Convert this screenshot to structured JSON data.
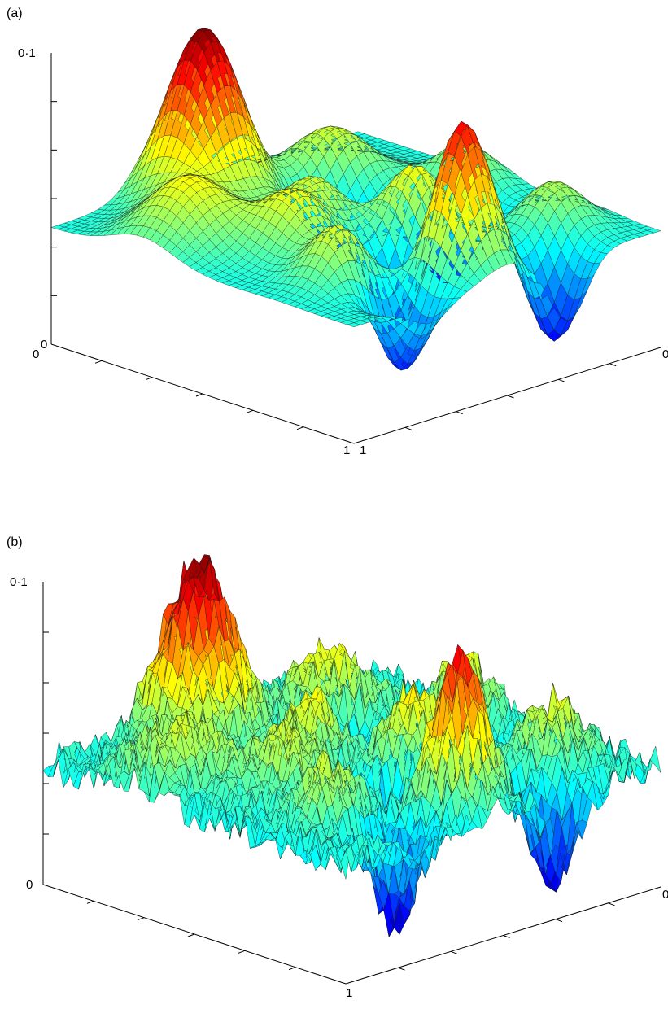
{
  "panels": [
    {
      "label": "(a)",
      "z_tick_top": "0·1",
      "z_tick_bottom": "0",
      "x_tick_start": "0",
      "x_tick_end": "1",
      "y_tick_start": "1",
      "y_tick_end": "0"
    },
    {
      "label": "(b)",
      "z_tick_top": "0·1",
      "z_tick_bottom": "0",
      "x_tick_end": "1",
      "y_tick_end": "0"
    }
  ],
  "chart_data": [
    {
      "type": "surface",
      "panel": "(a)",
      "description_kind": "smooth random surface",
      "x_range": [
        0,
        1
      ],
      "y_range": [
        0,
        1
      ],
      "zlim": [
        0,
        0.1
      ],
      "colormap": "jet",
      "grid": false,
      "peaks": [
        {
          "x": 0.12,
          "y": 0.62,
          "z": 0.1,
          "w": 0.09
        },
        {
          "x": 0.22,
          "y": 0.3,
          "z": 0.06,
          "w": 0.09
        },
        {
          "x": 0.3,
          "y": 0.85,
          "z": 0.062,
          "w": 0.1
        },
        {
          "x": 0.45,
          "y": 0.1,
          "z": 0.055,
          "w": 0.07
        },
        {
          "x": 0.42,
          "y": 0.55,
          "z": 0.058,
          "w": 0.07
        },
        {
          "x": 0.52,
          "y": 0.72,
          "z": 0.06,
          "w": 0.08
        },
        {
          "x": 0.6,
          "y": 0.4,
          "z": 0.065,
          "w": 0.07
        },
        {
          "x": 0.75,
          "y": 0.8,
          "z": 0.06,
          "w": 0.07
        },
        {
          "x": 0.85,
          "y": 0.5,
          "z": 0.09,
          "w": 0.07
        },
        {
          "x": 0.8,
          "y": 0.15,
          "z": 0.055,
          "w": 0.07
        }
      ],
      "valleys": [
        {
          "x": 0.55,
          "y": 0.25,
          "z": 0.012,
          "w": 0.07
        },
        {
          "x": 0.7,
          "y": 0.55,
          "z": 0.01,
          "w": 0.06
        },
        {
          "x": 0.9,
          "y": 0.75,
          "z": 0.012,
          "w": 0.06
        },
        {
          "x": 0.35,
          "y": 0.4,
          "z": 0.02,
          "w": 0.08
        },
        {
          "x": 0.95,
          "y": 0.3,
          "z": 0.01,
          "w": 0.06
        }
      ],
      "base_level": 0.04
    },
    {
      "type": "surface",
      "panel": "(b)",
      "description_kind": "rough random surface",
      "x_range": [
        0,
        1
      ],
      "y_range": [
        0,
        1
      ],
      "zlim": [
        0,
        0.1
      ],
      "colormap": "jet",
      "grid": false,
      "peaks": [
        {
          "x": 0.12,
          "y": 0.62,
          "z": 0.1,
          "w": 0.08
        },
        {
          "x": 0.22,
          "y": 0.3,
          "z": 0.062,
          "w": 0.08
        },
        {
          "x": 0.3,
          "y": 0.85,
          "z": 0.058,
          "w": 0.09
        },
        {
          "x": 0.45,
          "y": 0.1,
          "z": 0.06,
          "w": 0.06
        },
        {
          "x": 0.42,
          "y": 0.55,
          "z": 0.062,
          "w": 0.06
        },
        {
          "x": 0.52,
          "y": 0.72,
          "z": 0.058,
          "w": 0.07
        },
        {
          "x": 0.6,
          "y": 0.4,
          "z": 0.066,
          "w": 0.06
        },
        {
          "x": 0.75,
          "y": 0.8,
          "z": 0.058,
          "w": 0.06
        },
        {
          "x": 0.85,
          "y": 0.5,
          "z": 0.088,
          "w": 0.06
        },
        {
          "x": 0.8,
          "y": 0.15,
          "z": 0.06,
          "w": 0.06
        }
      ],
      "valleys": [
        {
          "x": 0.55,
          "y": 0.25,
          "z": 0.014,
          "w": 0.06
        },
        {
          "x": 0.7,
          "y": 0.55,
          "z": 0.012,
          "w": 0.05
        },
        {
          "x": 0.9,
          "y": 0.75,
          "z": 0.008,
          "w": 0.05
        },
        {
          "x": 0.35,
          "y": 0.4,
          "z": 0.018,
          "w": 0.07
        },
        {
          "x": 0.95,
          "y": 0.3,
          "z": 0.01,
          "w": 0.05
        }
      ],
      "base_level": 0.04,
      "roughness": 0.006
    }
  ]
}
